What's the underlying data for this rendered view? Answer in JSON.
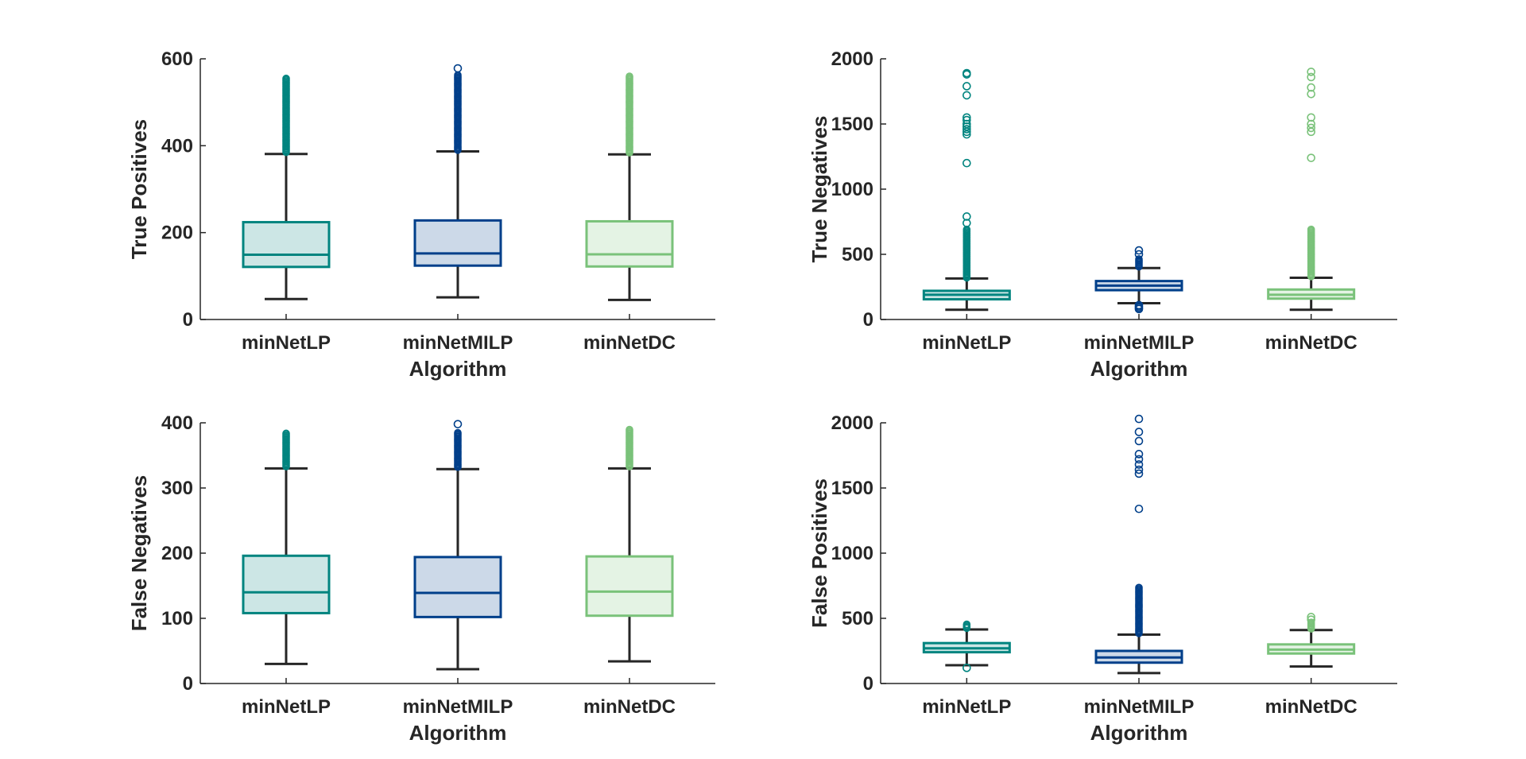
{
  "colors": {
    "minNetLP": "#00847f",
    "minNetMILP": "#003f8a",
    "minNetDC": "#7ac27a",
    "axis": "#262626"
  },
  "chart_data": [
    {
      "type": "box",
      "ylabel": "True Positives",
      "xlabel": "Algorithm",
      "ylim": [
        0,
        600
      ],
      "yticks": [
        0,
        200,
        400,
        600
      ],
      "categories": [
        "minNetLP",
        "minNetMILP",
        "minNetDC"
      ],
      "series": [
        {
          "name": "minNetLP",
          "whisker_low": 47,
          "q1": 121,
          "median": 149,
          "q3": 224,
          "whisker_high": 381,
          "outliers_dense": [
            385,
            555
          ],
          "outliers": []
        },
        {
          "name": "minNetMILP",
          "whisker_low": 51,
          "q1": 124,
          "median": 152,
          "q3": 228,
          "whisker_high": 387,
          "outliers_dense": [
            390,
            565
          ],
          "outliers": [
            578
          ]
        },
        {
          "name": "minNetDC",
          "whisker_low": 45,
          "q1": 122,
          "median": 150,
          "q3": 226,
          "whisker_high": 380,
          "outliers_dense": [
            384,
            562
          ],
          "outliers": []
        }
      ]
    },
    {
      "type": "box",
      "ylabel": "True Negatives",
      "xlabel": "Algorithm",
      "ylim": [
        0,
        2000
      ],
      "yticks": [
        0,
        500,
        1000,
        1500,
        2000
      ],
      "categories": [
        "minNetLP",
        "minNetMILP",
        "minNetDC"
      ],
      "series": [
        {
          "name": "minNetLP",
          "whisker_low": 75,
          "q1": 155,
          "median": 190,
          "q3": 220,
          "whisker_high": 315,
          "outliers_dense": [
            320,
            700
          ],
          "outliers": [
            740,
            790,
            1200,
            1420,
            1440,
            1460,
            1480,
            1500,
            1530,
            1550,
            1720,
            1790,
            1880,
            1890
          ]
        },
        {
          "name": "minNetMILP",
          "whisker_low": 125,
          "q1": 225,
          "median": 260,
          "q3": 295,
          "whisker_high": 395,
          "outliers_dense": [
            405,
            470
          ],
          "outliers": [
            80,
            90,
            100,
            110,
            500,
            530
          ]
        },
        {
          "name": "minNetDC",
          "whisker_low": 75,
          "q1": 160,
          "median": 190,
          "q3": 230,
          "whisker_high": 320,
          "outliers_dense": [
            330,
            700
          ],
          "outliers": [
            1240,
            1440,
            1470,
            1500,
            1550,
            1730,
            1780,
            1860,
            1900
          ]
        }
      ]
    },
    {
      "type": "box",
      "ylabel": "False Negatives",
      "xlabel": "Algorithm",
      "ylim": [
        0,
        400
      ],
      "yticks": [
        0,
        100,
        200,
        300,
        400
      ],
      "categories": [
        "minNetLP",
        "minNetMILP",
        "minNetDC"
      ],
      "series": [
        {
          "name": "minNetLP",
          "whisker_low": 30,
          "q1": 108,
          "median": 140,
          "q3": 196,
          "whisker_high": 330,
          "outliers_dense": [
            333,
            385
          ],
          "outliers": []
        },
        {
          "name": "minNetMILP",
          "whisker_low": 22,
          "q1": 102,
          "median": 139,
          "q3": 194,
          "whisker_high": 329,
          "outliers_dense": [
            332,
            385
          ],
          "outliers": [
            398
          ]
        },
        {
          "name": "minNetDC",
          "whisker_low": 34,
          "q1": 104,
          "median": 141,
          "q3": 195,
          "whisker_high": 330,
          "outliers_dense": [
            333,
            390
          ],
          "outliers": []
        }
      ]
    },
    {
      "type": "box",
      "ylabel": "False Positives",
      "xlabel": "Algorithm",
      "ylim": [
        0,
        2000
      ],
      "yticks": [
        0,
        500,
        1000,
        1500,
        2000
      ],
      "categories": [
        "minNetLP",
        "minNetMILP",
        "minNetDC"
      ],
      "series": [
        {
          "name": "minNetLP",
          "whisker_low": 140,
          "q1": 240,
          "median": 270,
          "q3": 310,
          "whisker_high": 415,
          "outliers_dense": [
            425,
            460
          ],
          "outliers": [
            120
          ]
        },
        {
          "name": "minNetMILP",
          "whisker_low": 80,
          "q1": 160,
          "median": 200,
          "q3": 250,
          "whisker_high": 375,
          "outliers_dense": [
            385,
            745
          ],
          "outliers": [
            1340,
            1610,
            1640,
            1680,
            1720,
            1760,
            1860,
            1930,
            2030
          ]
        },
        {
          "name": "minNetDC",
          "whisker_low": 130,
          "q1": 230,
          "median": 260,
          "q3": 300,
          "whisker_high": 410,
          "outliers_dense": [
            420,
            470
          ],
          "outliers": [
            490,
            510
          ]
        }
      ]
    }
  ]
}
